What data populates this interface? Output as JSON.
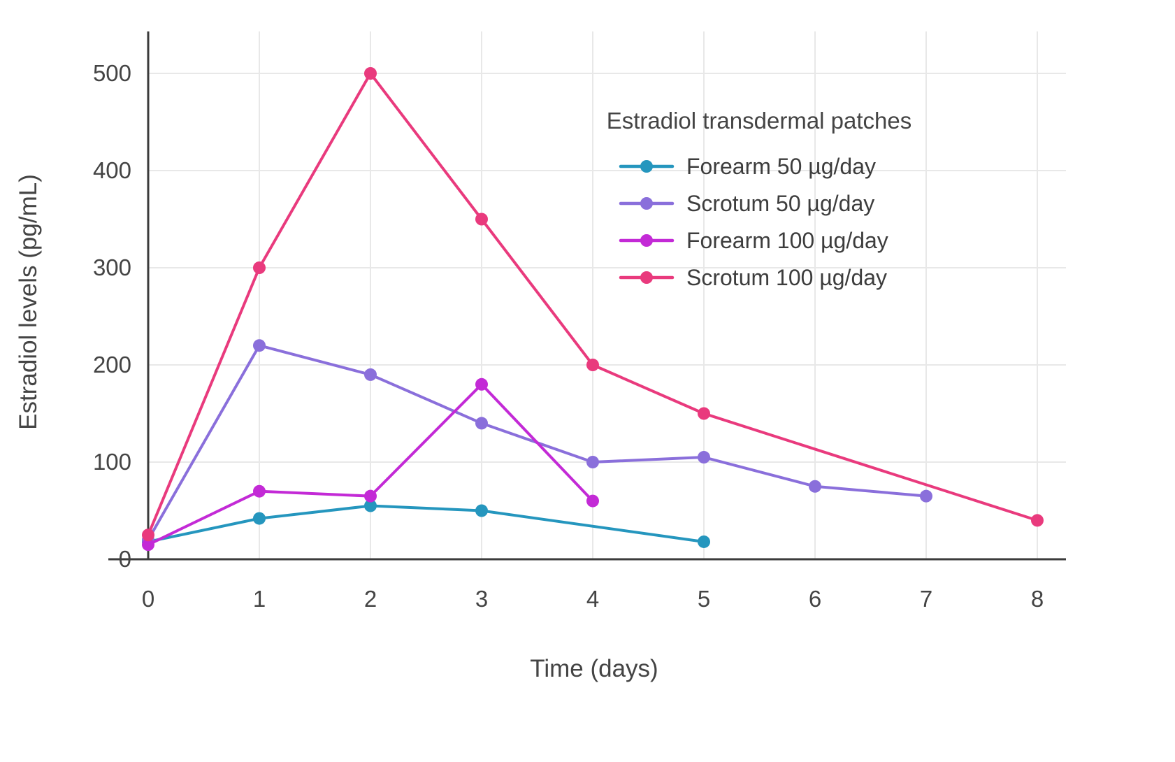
{
  "theme": {
    "background": "#ffffff",
    "grid_color": "#e8e8e8",
    "axis_color": "#3b3b3b",
    "text_color": "#444444",
    "legend_text_color": "#3d3d3d"
  },
  "chart_data": {
    "type": "line",
    "title": "Estradiol transdermal patches",
    "xlabel": "Time (days)",
    "ylabel": "Estradiol levels (pg/mL)",
    "xlim": [
      0,
      8
    ],
    "ylim": [
      0,
      500
    ],
    "xticks": [
      0,
      1,
      2,
      3,
      4,
      5,
      6,
      7,
      8
    ],
    "yticks": [
      0,
      100,
      200,
      300,
      400,
      500
    ],
    "grid": true,
    "legend_position": "top-right-inside",
    "series": [
      {
        "name": "Forearm 50 µg/day",
        "color": "#2596be",
        "x": [
          0,
          1,
          2,
          3,
          5
        ],
        "y": [
          18,
          42,
          55,
          50,
          18
        ]
      },
      {
        "name": "Scrotum 50 µg/day",
        "color": "#8a6fdb",
        "x": [
          0,
          1,
          2,
          3,
          4,
          5,
          6,
          7
        ],
        "y": [
          20,
          220,
          190,
          140,
          100,
          105,
          75,
          65
        ]
      },
      {
        "name": "Forearm 100 µg/day",
        "color": "#c32ad6",
        "x": [
          0,
          1,
          2,
          3,
          4
        ],
        "y": [
          15,
          70,
          65,
          180,
          60
        ]
      },
      {
        "name": "Scrotum 100 µg/day",
        "color": "#e93a7d",
        "x": [
          0,
          1,
          2,
          3,
          4,
          5,
          8
        ],
        "y": [
          25,
          300,
          500,
          350,
          200,
          150,
          40
        ]
      }
    ]
  }
}
